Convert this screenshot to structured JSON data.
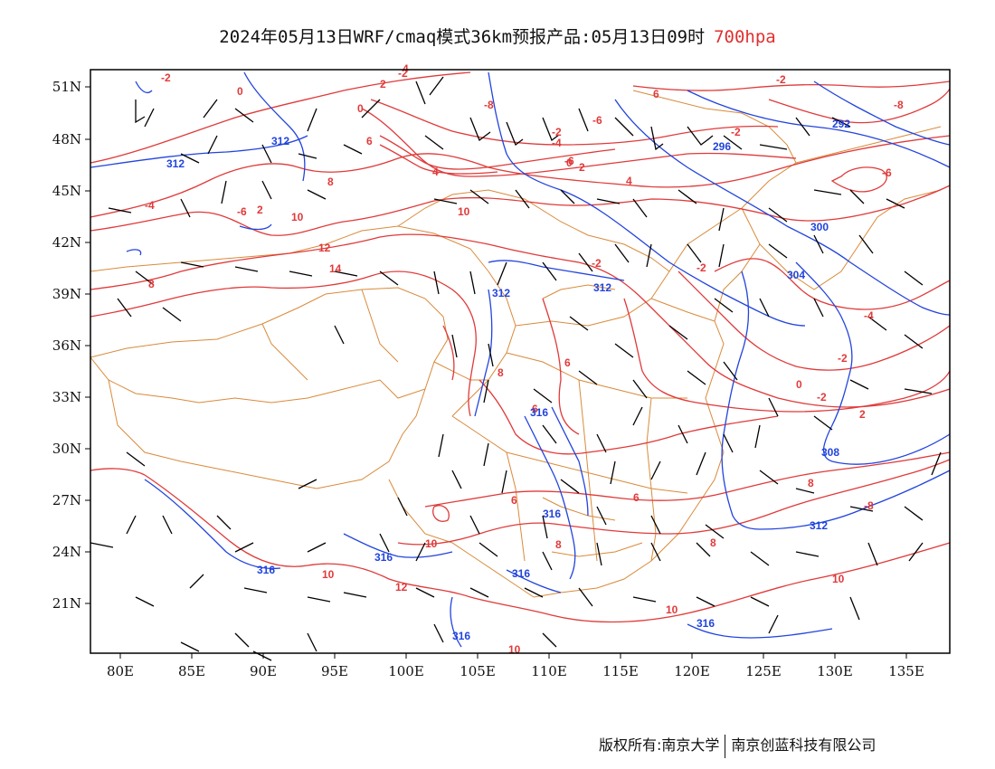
{
  "title": {
    "main": "2024年05月13日WRF/cmaq模式36km预报产品:05月13日09时",
    "level": "700hpa"
  },
  "axes": {
    "lon_labels": [
      "80E",
      "85E",
      "90E",
      "95E",
      "100E",
      "105E",
      "110E",
      "115E",
      "120E",
      "125E",
      "130E",
      "135E"
    ],
    "lat_labels": [
      "51N",
      "48N",
      "45N",
      "42N",
      "39N",
      "36N",
      "33N",
      "30N",
      "27N",
      "24N",
      "21N"
    ]
  },
  "colors": {
    "temperature": "#e03a3a",
    "height": "#2244dd",
    "boundary": "#d98a3a",
    "wind": "#000000"
  },
  "temp_labels": [
    "-2",
    "0",
    "2",
    "-2",
    "4",
    "0",
    "-8",
    "6",
    "-6",
    "6",
    "-4",
    "-2",
    "2",
    "4",
    "8",
    "10",
    "10",
    "12",
    "14",
    "-6",
    "2",
    "-4",
    "-6",
    "-2",
    "0",
    "-2",
    "4",
    "-8",
    "-2",
    "-2",
    "0",
    "-4",
    "-2",
    "8",
    "6",
    "8",
    "6",
    "6",
    "8",
    "10",
    "12",
    "10",
    "8",
    "10",
    "10",
    "10",
    "-2",
    "-8",
    "-6",
    "6",
    "8",
    "2"
  ],
  "height_labels": [
    "312",
    "312",
    "312",
    "312",
    "316",
    "308",
    "312",
    "316",
    "316",
    "316",
    "316",
    "316",
    "316",
    "304",
    "300",
    "292",
    "296"
  ],
  "footer": {
    "owner": "版权所有:南京大学",
    "company": "南京创蓝科技有限公司"
  }
}
